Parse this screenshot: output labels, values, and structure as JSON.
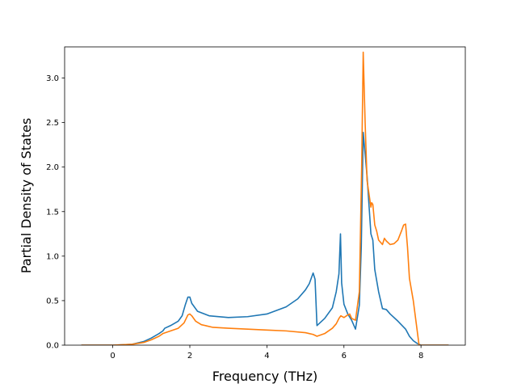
{
  "chart_data": {
    "type": "line",
    "title": "",
    "xlabel": "Frequency (THz)",
    "ylabel": "Partial Density of States",
    "xlim": [
      -1.25,
      9.15
    ],
    "ylim": [
      0,
      3.35
    ],
    "xticks": [
      0,
      2,
      4,
      6,
      8
    ],
    "xtick_labels": [
      "0",
      "2",
      "4",
      "6",
      "8"
    ],
    "yticks": [
      0,
      0.5,
      1.0,
      1.5,
      2.0,
      2.5,
      3.0
    ],
    "ytick_labels": [
      "0.0",
      "0.5",
      "1.0",
      "1.5",
      "2.0",
      "2.5",
      "3.0"
    ],
    "grid": false,
    "legend": "none",
    "series": [
      {
        "color": "#1f77b4",
        "x": [
          -0.8,
          0.0,
          0.5,
          0.8,
          1.0,
          1.2,
          1.3,
          1.35,
          1.5,
          1.7,
          1.8,
          1.88,
          1.95,
          2.0,
          2.05,
          2.2,
          2.5,
          3.0,
          3.5,
          4.0,
          4.5,
          4.8,
          5.0,
          5.1,
          5.2,
          5.25,
          5.3,
          5.35,
          5.5,
          5.7,
          5.8,
          5.87,
          5.91,
          5.94,
          6.0,
          6.1,
          6.2,
          6.3,
          6.4,
          6.45,
          6.5,
          6.6,
          6.7,
          6.75,
          6.8,
          6.9,
          7.0,
          7.1,
          7.2,
          7.4,
          7.6,
          7.7,
          7.8,
          7.9,
          8.0,
          8.1,
          8.7
        ],
        "y": [
          0,
          0,
          0.01,
          0.04,
          0.08,
          0.13,
          0.16,
          0.19,
          0.22,
          0.27,
          0.33,
          0.45,
          0.54,
          0.54,
          0.47,
          0.38,
          0.33,
          0.31,
          0.32,
          0.35,
          0.43,
          0.52,
          0.62,
          0.69,
          0.81,
          0.74,
          0.22,
          0.24,
          0.3,
          0.42,
          0.6,
          0.8,
          1.25,
          0.7,
          0.46,
          0.35,
          0.28,
          0.18,
          0.45,
          1.1,
          2.39,
          1.9,
          1.25,
          1.18,
          0.85,
          0.6,
          0.41,
          0.4,
          0.35,
          0.27,
          0.18,
          0.1,
          0.05,
          0.02,
          0,
          0,
          0
        ]
      },
      {
        "color": "#ff7f0e",
        "x": [
          -0.8,
          0.0,
          0.5,
          0.8,
          1.0,
          1.2,
          1.3,
          1.5,
          1.7,
          1.85,
          1.95,
          2.0,
          2.05,
          2.15,
          2.3,
          2.6,
          3.0,
          3.5,
          4.0,
          4.5,
          5.0,
          5.2,
          5.3,
          5.5,
          5.7,
          5.8,
          5.87,
          5.92,
          6.0,
          6.1,
          6.15,
          6.2,
          6.3,
          6.4,
          6.46,
          6.5,
          6.55,
          6.6,
          6.7,
          6.72,
          6.75,
          6.8,
          6.85,
          6.9,
          7.0,
          7.05,
          7.1,
          7.2,
          7.3,
          7.4,
          7.5,
          7.55,
          7.6,
          7.65,
          7.7,
          7.8,
          7.95,
          8.0,
          8.7
        ],
        "y": [
          0,
          0,
          0.01,
          0.03,
          0.06,
          0.1,
          0.13,
          0.16,
          0.19,
          0.25,
          0.34,
          0.35,
          0.33,
          0.27,
          0.23,
          0.2,
          0.19,
          0.18,
          0.17,
          0.16,
          0.14,
          0.12,
          0.1,
          0.13,
          0.19,
          0.24,
          0.3,
          0.33,
          0.31,
          0.34,
          0.35,
          0.3,
          0.28,
          0.6,
          2.0,
          3.29,
          2.5,
          1.85,
          1.55,
          1.6,
          1.58,
          1.35,
          1.28,
          1.18,
          1.13,
          1.2,
          1.17,
          1.13,
          1.14,
          1.18,
          1.29,
          1.35,
          1.36,
          1.1,
          0.75,
          0.5,
          0.0,
          0,
          0
        ]
      }
    ]
  }
}
